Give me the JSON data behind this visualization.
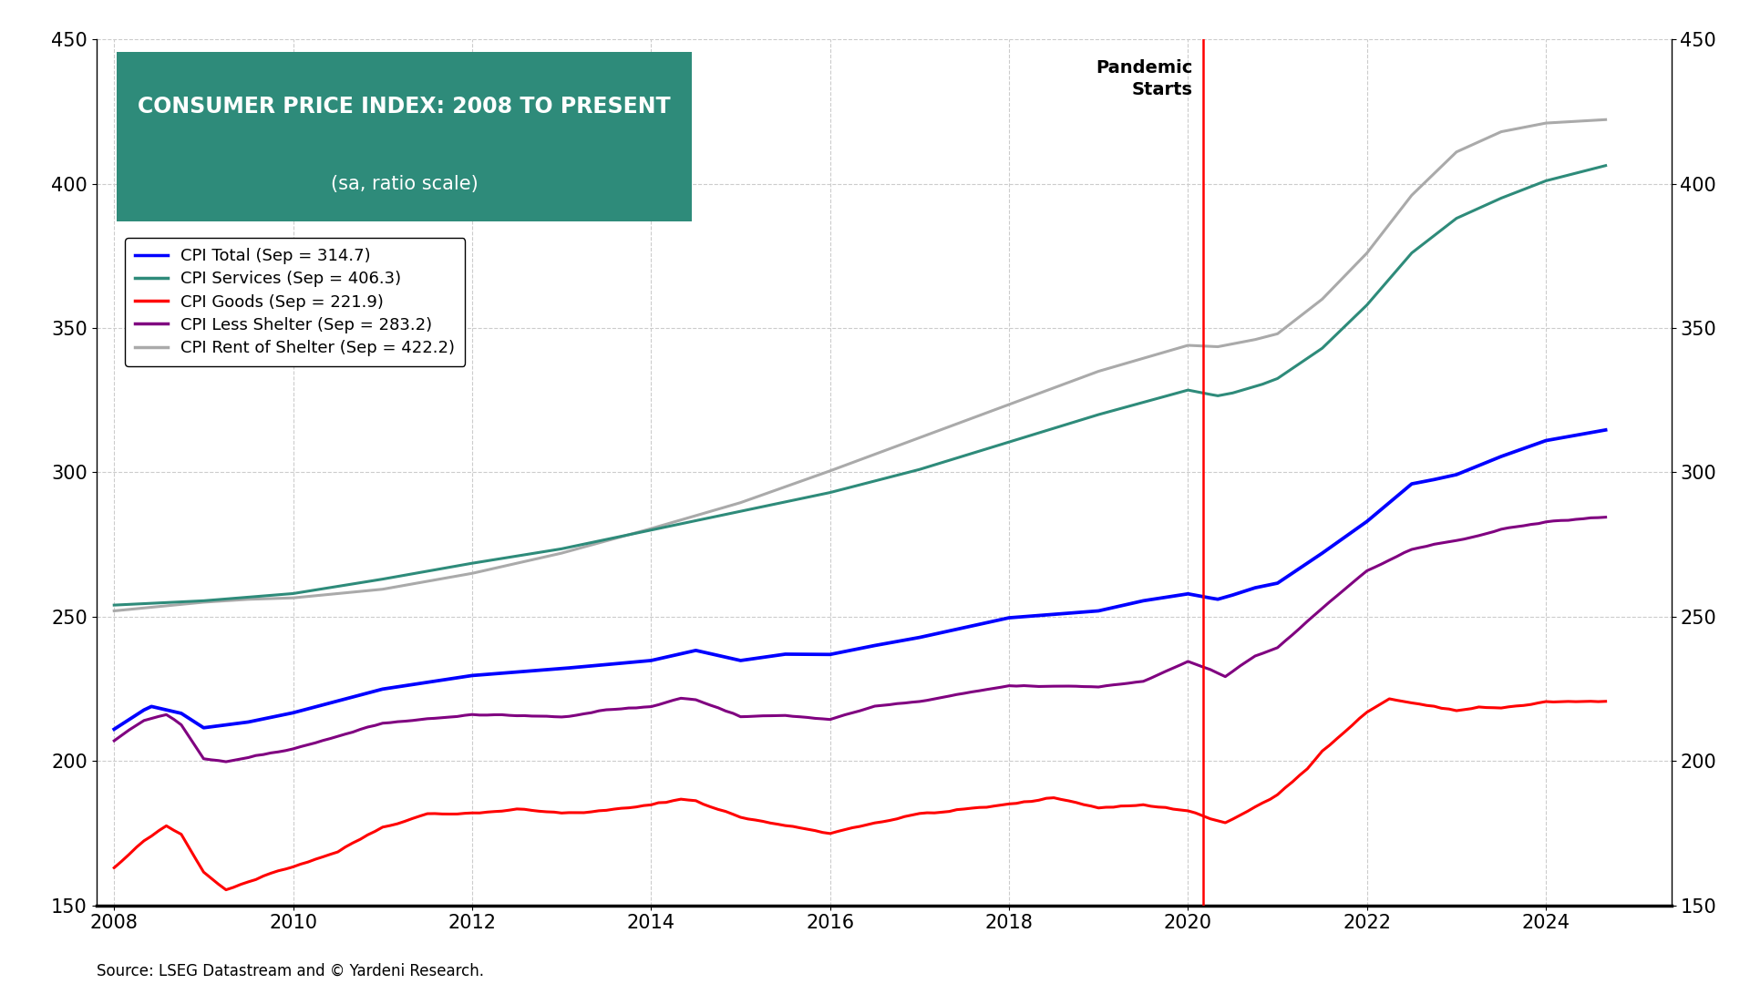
{
  "title_line1": "CONSUMER PRICE INDEX: 2008 TO PRESENT",
  "title_line2": "(sa, ratio scale)",
  "title_bg_color": "#2e8b7a",
  "title_text_color": "#ffffff",
  "source_text": "Source: LSEG Datastream and © Yardeni Research.",
  "pandemic_label": "Pandemic\nStarts",
  "pandemic_x": 2020.17,
  "ylim": [
    150,
    450
  ],
  "yticks": [
    150,
    200,
    250,
    300,
    350,
    400,
    450
  ],
  "legend_entries": [
    {
      "label": "CPI Total (Sep = 314.7)",
      "color": "#0000ff"
    },
    {
      "label": "CPI Services (Sep = 406.3)",
      "color": "#2e8b7a"
    },
    {
      "label": "CPI Goods (Sep = 221.9)",
      "color": "#ff0000"
    },
    {
      "label": "CPI Less Shelter (Sep = 283.2)",
      "color": "#800080"
    },
    {
      "label": "CPI Rent of Shelter (Sep = 422.2)",
      "color": "#aaaaaa"
    }
  ],
  "line_width": 2.2,
  "bg_color": "#ffffff",
  "grid_color": "#cccccc",
  "axis_label_color": "#000000",
  "xlim": [
    2007.8,
    2025.4
  ],
  "xticks": [
    2008,
    2010,
    2012,
    2014,
    2016,
    2018,
    2020,
    2022,
    2024
  ]
}
